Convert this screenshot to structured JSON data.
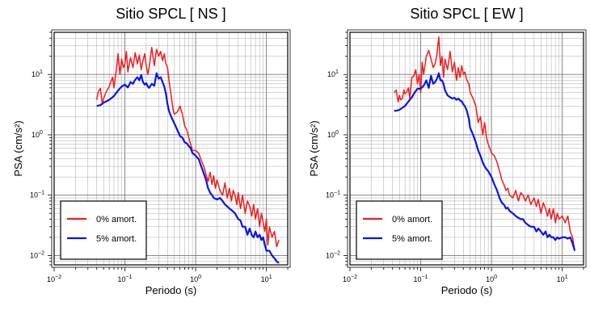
{
  "chart_data": [
    {
      "type": "line",
      "title": "Sitio SPCL [ NS ]",
      "xlabel": "Periodo (s)",
      "ylabel": "PSA (cm/s²)",
      "xscale": "log",
      "yscale": "log",
      "xlim": [
        0.01,
        20
      ],
      "ylim": [
        0.007,
        50
      ],
      "grid": true,
      "legend_position": "bottom-left",
      "xticks": [
        {
          "base": "10",
          "exp": "−2"
        },
        {
          "base": "10",
          "exp": "−1"
        },
        {
          "base": "10",
          "exp": "0"
        },
        {
          "base": "10",
          "exp": "1"
        }
      ],
      "yticks": [
        {
          "base": "10",
          "exp": "−2"
        },
        {
          "base": "10",
          "exp": "−1"
        },
        {
          "base": "10",
          "exp": "0"
        },
        {
          "base": "10",
          "exp": "1"
        }
      ],
      "series": [
        {
          "name": "0% amort.",
          "color": "#ee1c1c",
          "x": [
            0.04,
            0.042,
            0.045,
            0.048,
            0.05,
            0.053,
            0.056,
            0.06,
            0.063,
            0.067,
            0.07,
            0.075,
            0.08,
            0.085,
            0.09,
            0.095,
            0.1,
            0.105,
            0.11,
            0.12,
            0.13,
            0.14,
            0.15,
            0.16,
            0.17,
            0.18,
            0.19,
            0.2,
            0.21,
            0.22,
            0.24,
            0.26,
            0.28,
            0.3,
            0.32,
            0.34,
            0.36,
            0.38,
            0.4,
            0.42,
            0.45,
            0.48,
            0.5,
            0.55,
            0.6,
            0.65,
            0.7,
            0.75,
            0.8,
            0.85,
            0.9,
            1.0,
            1.1,
            1.2,
            1.3,
            1.4,
            1.5,
            1.6,
            1.7,
            1.8,
            1.9,
            2.0,
            2.2,
            2.4,
            2.6,
            2.8,
            3.0,
            3.2,
            3.4,
            3.6,
            3.8,
            4.0,
            4.3,
            4.6,
            5.0,
            5.4,
            5.8,
            6.2,
            6.6,
            7.0,
            7.5,
            8.0,
            8.5,
            9.0,
            9.5,
            10,
            10.5,
            11,
            12,
            13,
            14,
            15
          ],
          "values": [
            3.8,
            5.2,
            5.9,
            3.2,
            4.0,
            4.8,
            5.5,
            6.3,
            7.5,
            9.0,
            6.0,
            11,
            22,
            10,
            18,
            13,
            15,
            24,
            11,
            19,
            13,
            23,
            15,
            21,
            12,
            17,
            22,
            14,
            10,
            13,
            28,
            14,
            26,
            20,
            24,
            17,
            22,
            15,
            13,
            8,
            4.5,
            2.6,
            2.2,
            2.4,
            3.0,
            2.2,
            1.4,
            1.2,
            0.9,
            0.7,
            0.55,
            0.55,
            0.5,
            0.38,
            0.3,
            0.22,
            0.17,
            0.24,
            0.15,
            0.21,
            0.13,
            0.18,
            0.12,
            0.1,
            0.16,
            0.09,
            0.13,
            0.08,
            0.12,
            0.1,
            0.07,
            0.11,
            0.06,
            0.1,
            0.05,
            0.08,
            0.065,
            0.045,
            0.07,
            0.04,
            0.06,
            0.03,
            0.05,
            0.035,
            0.025,
            0.04,
            0.015,
            0.03,
            0.02,
            0.025,
            0.014,
            0.018
          ]
        },
        {
          "name": "5% amort.",
          "color": "#0a14e6",
          "x": [
            0.04,
            0.045,
            0.05,
            0.055,
            0.06,
            0.065,
            0.07,
            0.075,
            0.08,
            0.085,
            0.09,
            0.1,
            0.11,
            0.12,
            0.13,
            0.14,
            0.15,
            0.16,
            0.17,
            0.18,
            0.19,
            0.2,
            0.21,
            0.22,
            0.24,
            0.26,
            0.28,
            0.3,
            0.32,
            0.34,
            0.36,
            0.38,
            0.4,
            0.42,
            0.45,
            0.48,
            0.5,
            0.55,
            0.6,
            0.65,
            0.7,
            0.75,
            0.8,
            0.85,
            0.9,
            1.0,
            1.1,
            1.2,
            1.3,
            1.4,
            1.5,
            1.6,
            1.7,
            1.8,
            2.0,
            2.2,
            2.4,
            2.6,
            2.8,
            3.0,
            3.3,
            3.6,
            4.0,
            4.3,
            4.6,
            5.0,
            5.4,
            5.8,
            6.2,
            6.6,
            7.0,
            7.5,
            8.0,
            8.5,
            9.0,
            9.5,
            10,
            11,
            12,
            13,
            14,
            15
          ],
          "values": [
            3.0,
            3.1,
            3.4,
            3.6,
            3.8,
            4.1,
            4.4,
            4.9,
            5.4,
            5.9,
            6.3,
            6.8,
            6.1,
            7.5,
            7.0,
            8.2,
            9.0,
            8.0,
            9.8,
            7.5,
            6.8,
            7.2,
            6.4,
            6.0,
            7.0,
            6.5,
            10.5,
            8.5,
            9.0,
            7.5,
            6.3,
            4.8,
            3.2,
            2.5,
            2.0,
            1.7,
            1.55,
            1.2,
            0.95,
            0.9,
            0.75,
            0.72,
            0.65,
            0.6,
            0.5,
            0.45,
            0.4,
            0.3,
            0.23,
            0.18,
            0.13,
            0.11,
            0.1,
            0.09,
            0.085,
            0.09,
            0.08,
            0.07,
            0.065,
            0.06,
            0.055,
            0.05,
            0.04,
            0.038,
            0.03,
            0.03,
            0.022,
            0.028,
            0.022,
            0.02,
            0.025,
            0.02,
            0.022,
            0.018,
            0.02,
            0.015,
            0.012,
            0.012,
            0.01,
            0.009,
            0.008,
            0.0075
          ]
        }
      ]
    },
    {
      "type": "line",
      "title": "Sitio SPCL [ EW ]",
      "xlabel": "Periodo (s)",
      "ylabel": "PSA (cm/s²)",
      "xscale": "log",
      "yscale": "log",
      "xlim": [
        0.01,
        20
      ],
      "ylim": [
        0.007,
        50
      ],
      "grid": true,
      "legend_position": "bottom-left",
      "xticks": [
        {
          "base": "10",
          "exp": "−2"
        },
        {
          "base": "10",
          "exp": "−1"
        },
        {
          "base": "10",
          "exp": "0"
        },
        {
          "base": "10",
          "exp": "1"
        }
      ],
      "yticks": [
        {
          "base": "10",
          "exp": "−2"
        },
        {
          "base": "10",
          "exp": "−1"
        },
        {
          "base": "10",
          "exp": "0"
        },
        {
          "base": "10",
          "exp": "1"
        }
      ],
      "series": [
        {
          "name": "0% amort.",
          "color": "#ee1c1c",
          "x": [
            0.042,
            0.045,
            0.048,
            0.05,
            0.052,
            0.055,
            0.058,
            0.06,
            0.063,
            0.067,
            0.07,
            0.075,
            0.08,
            0.085,
            0.09,
            0.095,
            0.1,
            0.105,
            0.11,
            0.12,
            0.13,
            0.14,
            0.15,
            0.16,
            0.17,
            0.18,
            0.19,
            0.2,
            0.21,
            0.22,
            0.24,
            0.26,
            0.28,
            0.3,
            0.32,
            0.34,
            0.36,
            0.38,
            0.4,
            0.42,
            0.45,
            0.48,
            0.5,
            0.55,
            0.6,
            0.65,
            0.7,
            0.75,
            0.8,
            0.85,
            0.9,
            1.0,
            1.1,
            1.2,
            1.3,
            1.4,
            1.5,
            1.6,
            1.7,
            1.8,
            2.0,
            2.2,
            2.4,
            2.6,
            2.8,
            3.0,
            3.3,
            3.6,
            4.0,
            4.3,
            4.6,
            5.0,
            5.4,
            5.8,
            6.2,
            6.6,
            7.0,
            7.5,
            8.0,
            8.5,
            9.0,
            10,
            11,
            12,
            13,
            14,
            15
          ],
          "values": [
            5.0,
            5.5,
            3.5,
            4.5,
            3.8,
            4.0,
            5.5,
            4.8,
            5.0,
            6.0,
            4.0,
            9.0,
            9.5,
            12,
            7.0,
            10,
            5.0,
            16,
            10,
            20,
            25,
            18,
            13,
            15,
            22,
            42,
            14,
            20,
            9.0,
            18,
            12,
            24,
            11,
            16,
            8.0,
            13,
            9.0,
            14,
            10,
            11,
            8.0,
            7.0,
            5.0,
            4.0,
            3.0,
            1.6,
            2.0,
            1.0,
            1.6,
            0.9,
            0.7,
            0.5,
            0.45,
            0.35,
            0.25,
            0.18,
            0.15,
            0.12,
            0.13,
            0.1,
            0.09,
            0.12,
            0.08,
            0.11,
            0.1,
            0.08,
            0.1,
            0.07,
            0.09,
            0.065,
            0.085,
            0.05,
            0.075,
            0.06,
            0.045,
            0.06,
            0.04,
            0.06,
            0.035,
            0.05,
            0.04,
            0.045,
            0.035,
            0.045,
            0.025,
            0.02,
            0.012
          ]
        },
        {
          "name": "5% amort.",
          "color": "#0a14e6",
          "x": [
            0.042,
            0.045,
            0.05,
            0.055,
            0.06,
            0.065,
            0.07,
            0.075,
            0.08,
            0.085,
            0.09,
            0.1,
            0.11,
            0.12,
            0.13,
            0.14,
            0.15,
            0.16,
            0.17,
            0.18,
            0.19,
            0.2,
            0.21,
            0.22,
            0.24,
            0.26,
            0.28,
            0.3,
            0.32,
            0.34,
            0.36,
            0.38,
            0.4,
            0.42,
            0.45,
            0.48,
            0.5,
            0.55,
            0.6,
            0.65,
            0.7,
            0.75,
            0.8,
            0.85,
            0.9,
            1.0,
            1.1,
            1.2,
            1.3,
            1.4,
            1.5,
            1.6,
            1.7,
            1.8,
            2.0,
            2.2,
            2.4,
            2.6,
            2.8,
            3.0,
            3.3,
            3.6,
            4.0,
            4.3,
            4.6,
            5.0,
            5.4,
            5.8,
            6.2,
            6.6,
            7.0,
            7.5,
            8.0,
            8.5,
            9.0,
            10,
            11,
            12,
            13,
            14,
            15
          ],
          "values": [
            2.5,
            2.5,
            2.6,
            2.8,
            3.0,
            3.4,
            3.8,
            4.2,
            4.8,
            5.3,
            5.8,
            5.8,
            6.5,
            8.0,
            6.0,
            9.5,
            7.0,
            7.5,
            8.5,
            10.5,
            8.0,
            8.0,
            7.0,
            5.5,
            4.5,
            4.2,
            4.0,
            4.1,
            3.8,
            4.0,
            3.7,
            3.6,
            3.2,
            3.0,
            2.5,
            1.8,
            1.3,
            1.0,
            0.75,
            0.55,
            0.45,
            0.35,
            0.3,
            0.27,
            0.25,
            0.2,
            0.15,
            0.12,
            0.09,
            0.075,
            0.07,
            0.06,
            0.062,
            0.055,
            0.05,
            0.045,
            0.042,
            0.04,
            0.04,
            0.035,
            0.032,
            0.03,
            0.03,
            0.025,
            0.028,
            0.025,
            0.022,
            0.025,
            0.02,
            0.022,
            0.02,
            0.02,
            0.018,
            0.02,
            0.019,
            0.02,
            0.02,
            0.019,
            0.02,
            0.016,
            0.012
          ]
        }
      ]
    }
  ]
}
